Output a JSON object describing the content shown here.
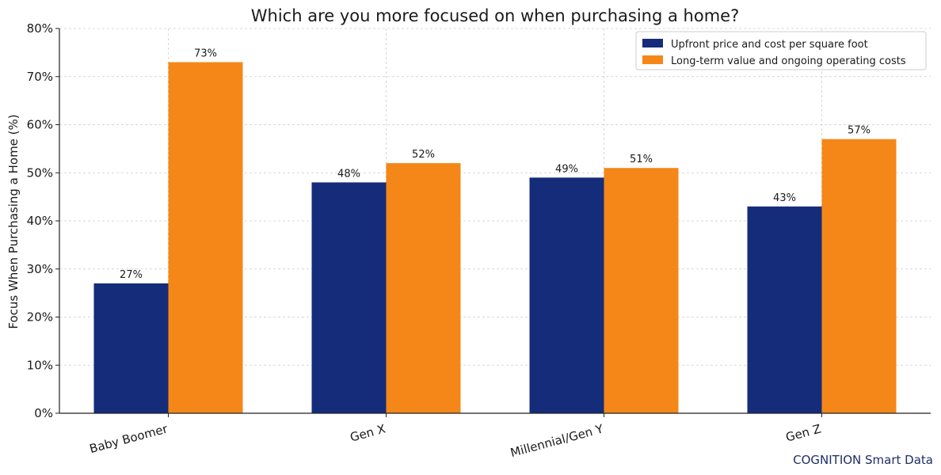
{
  "chart_data": {
    "type": "bar",
    "title": "Which are you more focused on when purchasing a home?",
    "xlabel": "",
    "ylabel": "Focus When Purchasing a Home (%)",
    "categories": [
      "Baby Boomer",
      "Gen X",
      "Millennial/Gen Y",
      "Gen Z"
    ],
    "series": [
      {
        "name": "Upfront price and cost per square foot",
        "color": "#142c7a",
        "values": [
          27,
          48,
          49,
          43
        ]
      },
      {
        "name": "Long-term value and ongoing operating costs",
        "color": "#f58718",
        "values": [
          73,
          52,
          51,
          57
        ]
      }
    ],
    "ylim": [
      0,
      80
    ],
    "yticks": [
      0,
      10,
      20,
      30,
      40,
      50,
      60,
      70,
      80
    ],
    "ytick_format": "{v}%",
    "data_label_format": "{v}%",
    "grid": true,
    "legend_position": "top-right",
    "x_tick_rotation": "tilted"
  },
  "footer": {
    "credit": "COGNITION Smart Data"
  }
}
